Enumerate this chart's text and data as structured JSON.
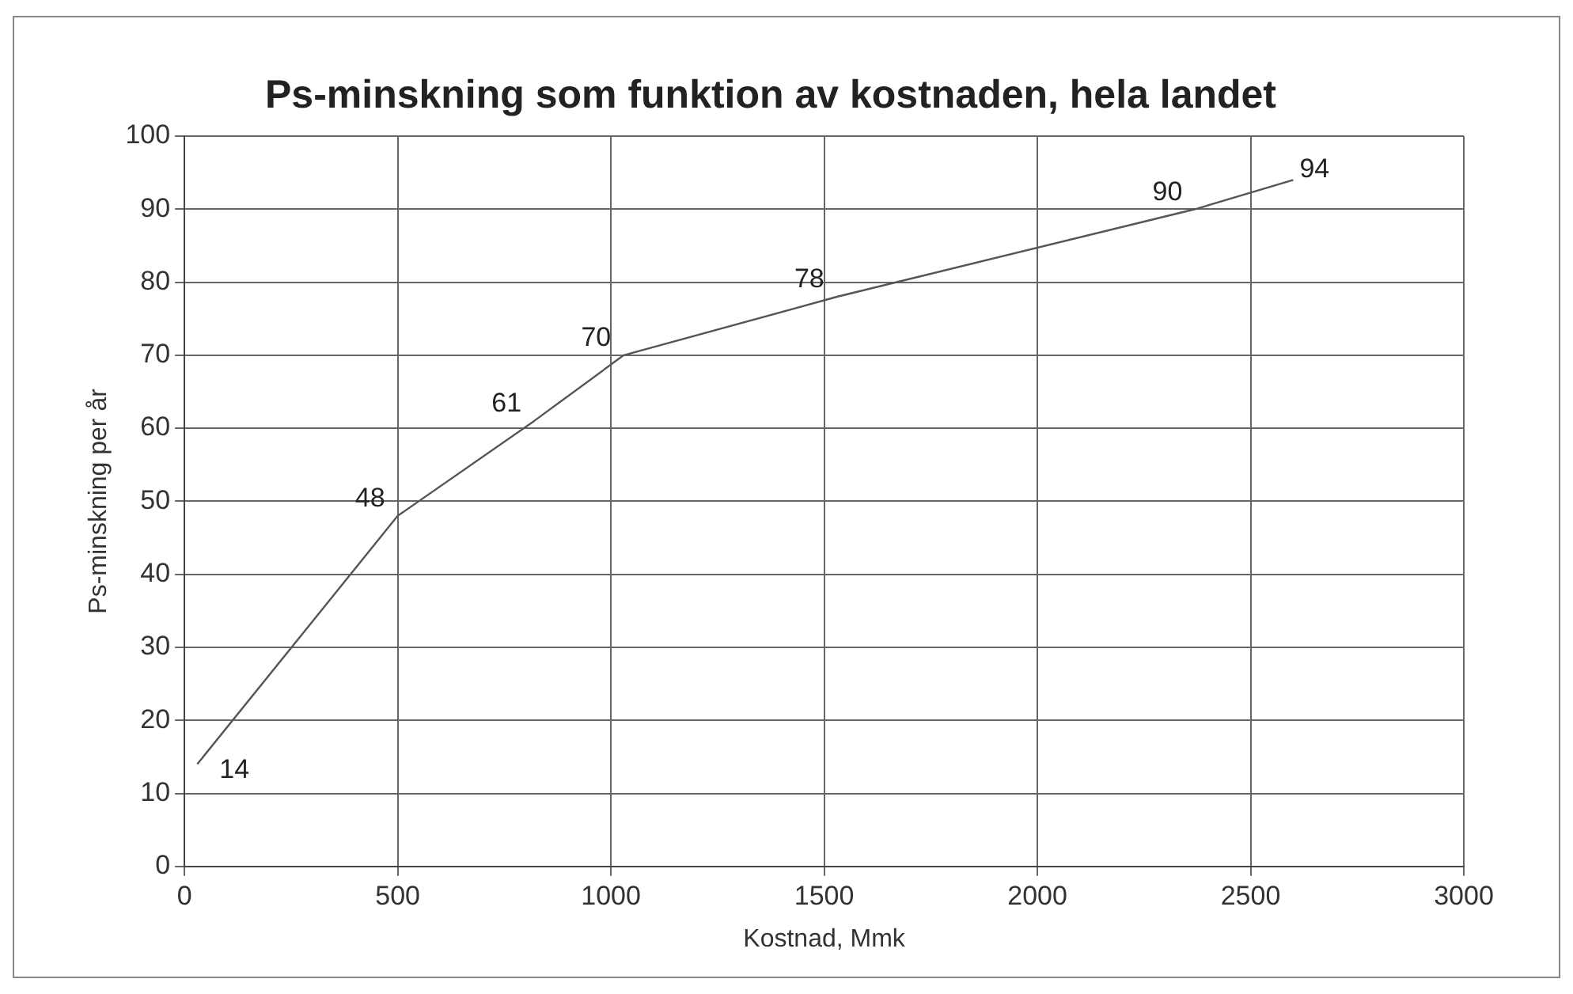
{
  "chart_data": {
    "type": "line",
    "title": "Ps-minskning som funktion av kostnaden, hela landet",
    "xlabel": "Kostnad, Mmk",
    "ylabel": "Ps-minskning per år",
    "x": [
      30,
      500,
      820,
      1030,
      1530,
      2370,
      2600
    ],
    "series": [
      {
        "color": "#555555",
        "values": [
          14,
          48,
          61,
          70,
          78,
          90,
          94
        ]
      }
    ],
    "xlim": [
      0,
      3000
    ],
    "xticks": [
      0,
      500,
      1000,
      1500,
      2000,
      2500,
      3000
    ],
    "ylim": [
      0,
      100
    ],
    "yticks": [
      0,
      10,
      20,
      30,
      40,
      50,
      60,
      70,
      80,
      90,
      100
    ],
    "grid": true,
    "data_labels": true,
    "legend": false,
    "marker": "none",
    "line_style": "solid"
  }
}
